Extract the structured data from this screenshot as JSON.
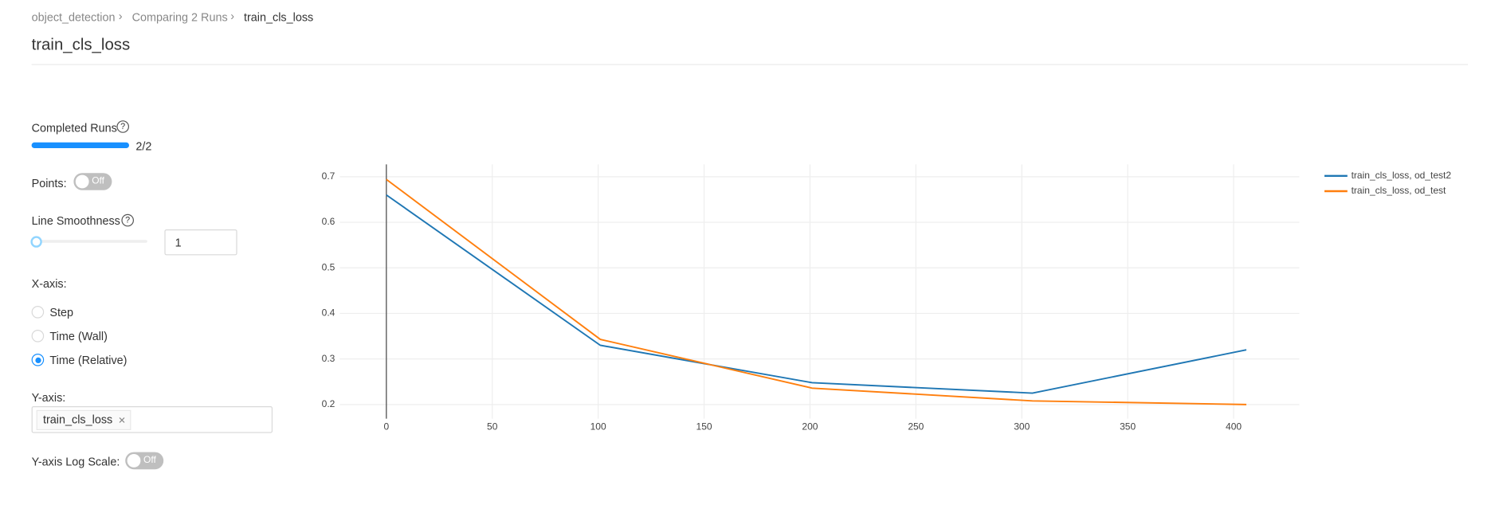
{
  "breadcrumb": [
    "object_detection",
    "Comparing 2 Runs",
    "train_cls_loss"
  ],
  "title": "train_cls_loss",
  "controls": {
    "completed_runs": "Completed Runs",
    "completed_count": "2/2",
    "points": "Points:",
    "points_toggle": "Off",
    "line_smoothness": "Line Smoothness",
    "smoothness_value": "1",
    "x_axis": "X-axis:",
    "x_options": [
      "Step",
      "Time (Wall)",
      "Time (Relative)"
    ],
    "y_axis": "Y-axis:",
    "y_tag": "train_cls_loss",
    "log_scale": "Y-axis Log Scale:",
    "log_toggle": "Off"
  },
  "chart_data": {
    "type": "line",
    "x": [
      0,
      101,
      201,
      305,
      406
    ],
    "series": [
      {
        "name": "train_cls_loss, od_test2",
        "color": "#1f77b4",
        "values": [
          0.66,
          0.33,
          0.248,
          0.225,
          0.32
        ]
      },
      {
        "name": "train_cls_loss, od_test",
        "color": "#ff7f0e",
        "values": [
          0.694,
          0.343,
          0.236,
          0.208,
          0.2
        ]
      }
    ],
    "xlim": [
      -22,
      431
    ],
    "xticks": [
      0,
      50,
      100,
      150,
      200,
      250,
      300,
      350,
      400
    ],
    "ylim": [
      0.169,
      0.727
    ],
    "yticks": [
      0.2,
      0.3,
      0.4,
      0.5,
      0.6,
      0.7
    ],
    "grid": true,
    "legend": "right"
  }
}
